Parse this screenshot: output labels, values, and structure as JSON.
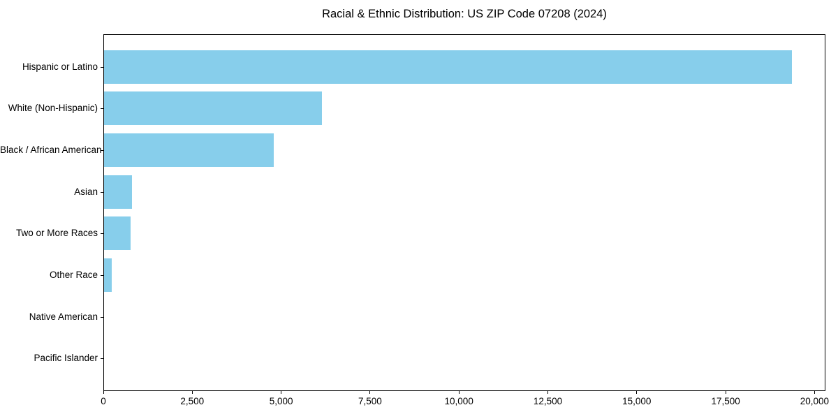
{
  "chart_data": {
    "type": "bar",
    "orientation": "horizontal",
    "title": "Racial & Ethnic Distribution: US ZIP Code 07208 (2024)",
    "xlabel": "",
    "ylabel": "",
    "categories": [
      "Hispanic or Latino",
      "White (Non-Hispanic)",
      "Black / African American",
      "Asian",
      "Two or More Races",
      "Other Race",
      "Native American",
      "Pacific Islander"
    ],
    "values": [
      19340,
      6120,
      4780,
      790,
      745,
      220,
      0,
      0
    ],
    "xlim": [
      0,
      20000
    ],
    "xticks": [
      0,
      2500,
      5000,
      7500,
      10000,
      12500,
      15000,
      17500,
      20000
    ],
    "xtick_labels": [
      "0",
      "2,500",
      "5,000",
      "7,500",
      "10,000",
      "12,500",
      "15,000",
      "17,500",
      "20,000"
    ],
    "bar_color": "#87CEEB",
    "axis_color": "#000000",
    "text_color": "#000000",
    "grid": false,
    "legend": null,
    "background": "#ffffff"
  }
}
